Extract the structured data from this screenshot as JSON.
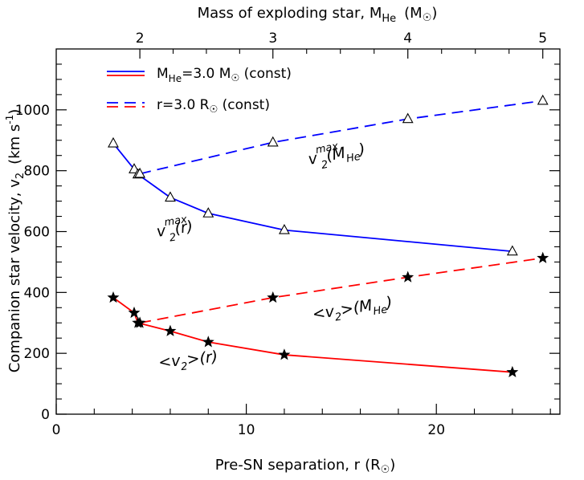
{
  "chart_data": {
    "type": "line",
    "xlabel": "Pre-SN separation, r",
    "xlabel_unit": "(R",
    "ylabel": "Companion star velocity, v",
    "ylabel_sub": "2",
    "ylabel_unit": "(km s",
    "ylabel_unit_sup": "-1",
    "top_axis_label": "Mass of exploding star, M",
    "top_axis_sub": "He",
    "top_axis_unit": "(M",
    "xlim": [
      0,
      26.5
    ],
    "ylim": [
      0,
      1200
    ],
    "x_ticks": [
      0,
      10,
      20
    ],
    "x_minor": [
      2,
      4,
      6,
      8,
      12,
      14,
      16,
      18,
      22,
      24,
      26
    ],
    "y_ticks": [
      0,
      200,
      400,
      600,
      800,
      1000
    ],
    "top_ticks": [
      {
        "label": "2",
        "x": 4.4
      },
      {
        "label": "3",
        "x": 11.4
      },
      {
        "label": "4",
        "x": 18.5
      },
      {
        "label": "5",
        "x": 25.6
      }
    ],
    "legend": [
      {
        "text_main": "M",
        "text_sub": "He",
        "text_rest": "=3.0 M",
        "text_tail": " (const)",
        "style": "solid"
      },
      {
        "text_main": "r=3.0 R",
        "text_sub": "",
        "text_rest": "",
        "text_tail": " (const)",
        "style": "dashed"
      }
    ],
    "series": [
      {
        "line": "solid",
        "color": "#0000ff",
        "marker": "triangle",
        "x": [
          3,
          4.1,
          4.3,
          6,
          8,
          12,
          24
        ],
        "y": [
          890,
          805,
          788,
          712,
          660,
          605,
          535
        ]
      },
      {
        "line": "dashed",
        "color": "#0000ff",
        "marker": "triangle",
        "x": [
          4.4,
          11.4,
          18.5,
          25.6
        ],
        "y": [
          790,
          893,
          970,
          1030
        ]
      },
      {
        "line": "solid",
        "color": "#ff0000",
        "marker": "star",
        "x": [
          3,
          4.1,
          4.3,
          6,
          8,
          12,
          24
        ],
        "y": [
          383,
          333,
          300,
          273,
          237,
          195,
          138
        ]
      },
      {
        "line": "dashed",
        "color": "#ff0000",
        "marker": "star",
        "x": [
          4.4,
          11.4,
          18.5,
          25.6
        ],
        "y": [
          300,
          383,
          450,
          513
        ]
      }
    ],
    "annotations": [
      {
        "main": "v",
        "sub": "2",
        "sup": "max",
        "rest": "(M",
        "rest_sub": "He",
        "rest_end": ")"
      },
      {
        "main": "v",
        "sub": "2",
        "sup": "max",
        "rest": "(r)",
        "rest_sub": "",
        "rest_end": ""
      },
      {
        "main": "<v",
        "sub": "2",
        "sup": "",
        "rest": ">(M",
        "rest_sub": "He",
        "rest_end": ")"
      },
      {
        "main": "<v",
        "sub": "2",
        "sup": "",
        "rest": ">(r)",
        "rest_sub": "",
        "rest_end": ""
      }
    ],
    "colors": {
      "blue": "#0000ff",
      "red": "#ff0000"
    }
  }
}
